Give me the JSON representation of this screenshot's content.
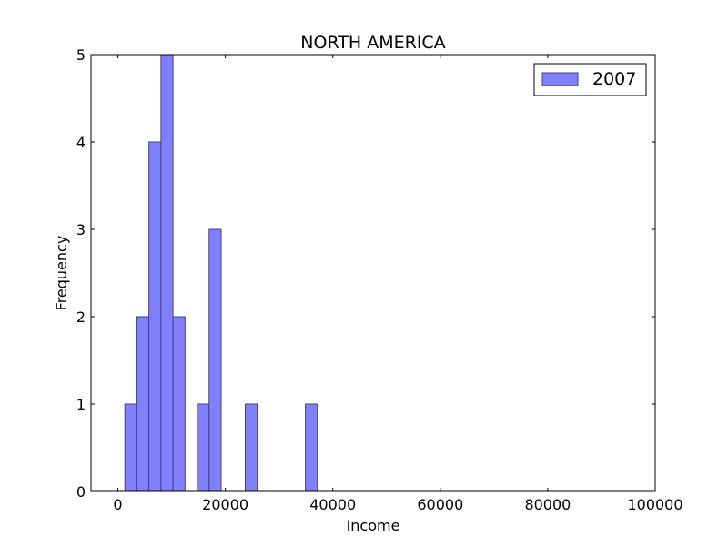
{
  "chart_data": {
    "type": "bar",
    "title": "NORTH AMERICA",
    "xlabel": "Income",
    "ylabel": "Frequency",
    "xlim": [
      -5000,
      100000
    ],
    "ylim": [
      0,
      5
    ],
    "xticks": [
      0,
      20000,
      40000,
      60000,
      80000,
      100000
    ],
    "yticks": [
      0,
      1,
      2,
      3,
      4,
      5
    ],
    "bin_width": 2240,
    "series": [
      {
        "name": "2007",
        "color": "#8080ff",
        "edge_color": "#3f3f7f",
        "bins": [
          {
            "x0": 1300,
            "count": 1
          },
          {
            "x0": 3540,
            "count": 2
          },
          {
            "x0": 5780,
            "count": 4
          },
          {
            "x0": 8020,
            "count": 5
          },
          {
            "x0": 10260,
            "count": 2
          },
          {
            "x0": 14740,
            "count": 1
          },
          {
            "x0": 16980,
            "count": 3
          },
          {
            "x0": 23700,
            "count": 1
          },
          {
            "x0": 34900,
            "count": 1
          }
        ]
      }
    ],
    "legend_position": "top-right",
    "grid": false
  }
}
